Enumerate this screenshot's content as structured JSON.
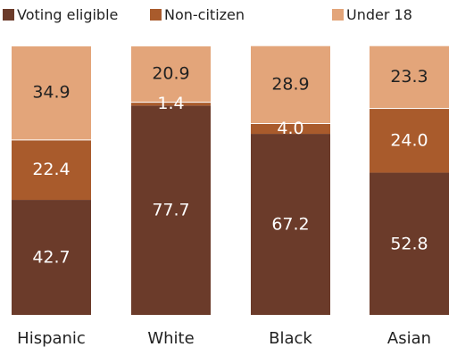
{
  "chart_data": {
    "type": "bar",
    "stacked": true,
    "categories": [
      "Hispanic",
      "White",
      "Black",
      "Asian"
    ],
    "series": [
      {
        "name": "Voting eligible",
        "values": [
          42.7,
          77.7,
          67.2,
          52.8
        ],
        "color": "#6b3b2a"
      },
      {
        "name": "Non-citizen",
        "values": [
          22.4,
          1.4,
          4.0,
          24.0
        ],
        "color": "#a95b2c"
      },
      {
        "name": "Under 18",
        "values": [
          34.9,
          20.9,
          28.9,
          23.3
        ],
        "color": "#e3a57a"
      }
    ],
    "label_colors": {
      "dark": "#ffffff",
      "light": "#222222"
    },
    "ylim": [
      0,
      100
    ],
    "legend_position": "top",
    "grid": false
  }
}
